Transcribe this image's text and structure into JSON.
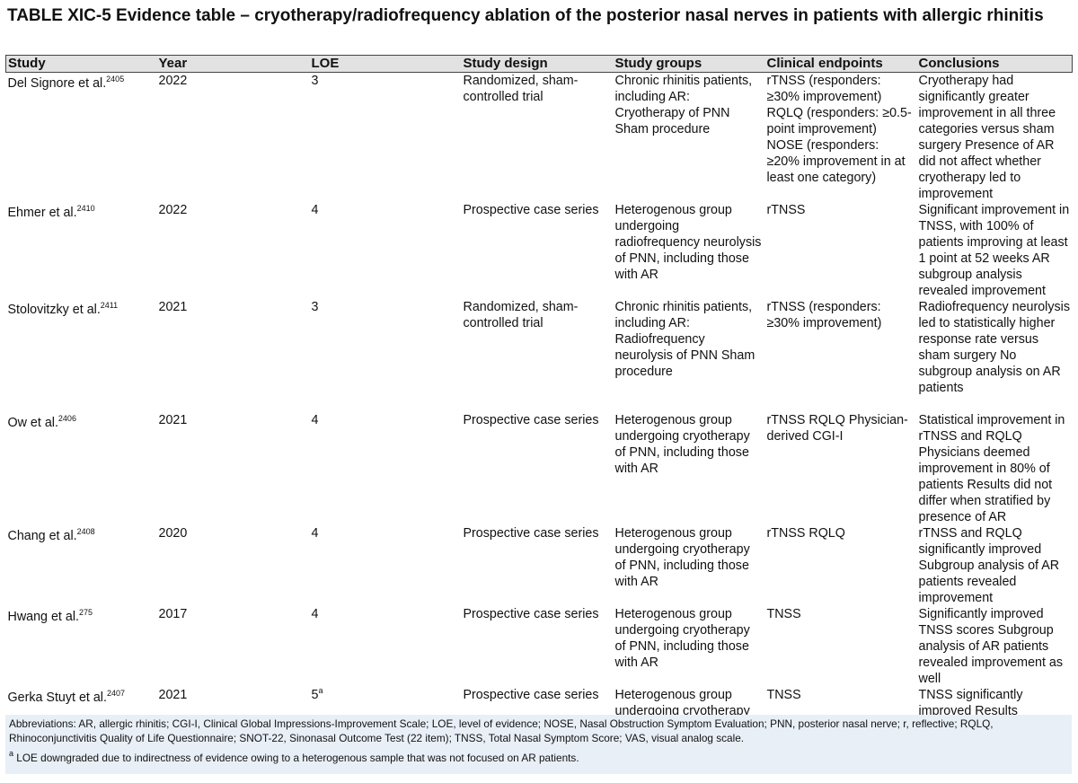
{
  "title": "TABLE XIC-5 Evidence table – cryotherapy/radiofrequency ablation of the posterior nasal nerves in patients with allergic rhinitis",
  "columns": [
    "Study",
    "Year",
    "LOE",
    "Study design",
    "Study groups",
    "Clinical endpoints",
    "Conclusions"
  ],
  "rows": [
    {
      "study": "Del Signore et al.",
      "ref": "2405",
      "year": "2022",
      "loe": "3",
      "loe_sup": "",
      "design": "Randomized, sham-controlled trial",
      "groups": "Chronic rhinitis patients, including AR: Cryotherapy of PNN Sham procedure",
      "endpoints": "rTNSS (responders: ≥30% improvement) RQLQ (responders: ≥0.5-point improvement) NOSE (responders: ≥20% improvement in at least one category)",
      "conclusions": "Cryotherapy had significantly greater improvement in all three categories versus sham surgery Presence of AR did not affect whether cryotherapy led to improvement"
    },
    {
      "study": "Ehmer et al.",
      "ref": "2410",
      "year": "2022",
      "loe": "4",
      "loe_sup": "",
      "design": "Prospective case series",
      "groups": "Heterogenous group undergoing radiofrequency neurolysis of PNN, including those with AR",
      "endpoints": "rTNSS",
      "conclusions": "Significant improvement in TNSS, with 100% of patients improving at least 1 point at 52 weeks AR subgroup analysis revealed improvement"
    },
    {
      "study": "Stolovitzky et al.",
      "ref": "2411",
      "year": "2021",
      "loe": "3",
      "loe_sup": "",
      "design": "Randomized, sham-controlled trial",
      "groups": "Chronic rhinitis patients, including AR: Radiofrequency neurolysis of PNN Sham procedure",
      "endpoints": "rTNSS (responders: ≥30% improvement)",
      "conclusions": "Radiofrequency neurolysis led to statistically higher response rate versus sham surgery No subgroup analysis on AR patients"
    },
    {
      "study": "Ow et al.",
      "ref": "2406",
      "year": "2021",
      "loe": "4",
      "loe_sup": "",
      "design": "Prospective case series",
      "groups": "Heterogenous group undergoing cryotherapy of PNN, including those with AR",
      "endpoints": "rTNSS RQLQ Physician-derived CGI-I",
      "conclusions": "Statistical improvement in rTNSS and RQLQ Physicians deemed improvement in 80% of patients Results did not differ when stratified by presence of AR"
    },
    {
      "study": "Chang et al.",
      "ref": "2408",
      "year": "2020",
      "loe": "4",
      "loe_sup": "",
      "design": "Prospective case series",
      "groups": "Heterogenous group undergoing cryotherapy of PNN, including those with AR",
      "endpoints": "rTNSS RQLQ",
      "conclusions": "rTNSS and RQLQ significantly improved Subgroup analysis of AR patients revealed improvement"
    },
    {
      "study": "Hwang et al.",
      "ref": "275",
      "year": "2017",
      "loe": "4",
      "loe_sup": "",
      "design": "Prospective case series",
      "groups": "Heterogenous group undergoing cryotherapy of PNN, including those with AR",
      "endpoints": "TNSS",
      "conclusions": "Significantly improved TNSS scores Subgroup analysis of AR patients revealed improvement as well"
    },
    {
      "study": "Gerka Stuyt et al.",
      "ref": "2407",
      "year": "2021",
      "loe": "5",
      "loe_sup": "a",
      "design": "Prospective case series",
      "groups": "Heterogenous group undergoing cryotherapy",
      "endpoints": "TNSS",
      "conclusions": "TNSS significantly improved Results"
    }
  ],
  "footer": {
    "abbreviations": "Abbreviations: AR, allergic rhinitis; CGI-I, Clinical Global Impressions-Improvement Scale; LOE, level of evidence; NOSE, Nasal Obstruction Symptom Evaluation; PNN, posterior nasal nerve; r, reflective; RQLQ, Rhinoconjunctivitis Quality of Life Questionnaire; SNOT-22, Sinonasal Outcome Test (22 item); TNSS, Total Nasal Symptom Score; VAS, visual analog scale.",
    "footnote_mark": "a",
    "footnote": "LOE downgraded due to indirectness of evidence owing to a heterogenous sample that was not focused on AR patients."
  }
}
